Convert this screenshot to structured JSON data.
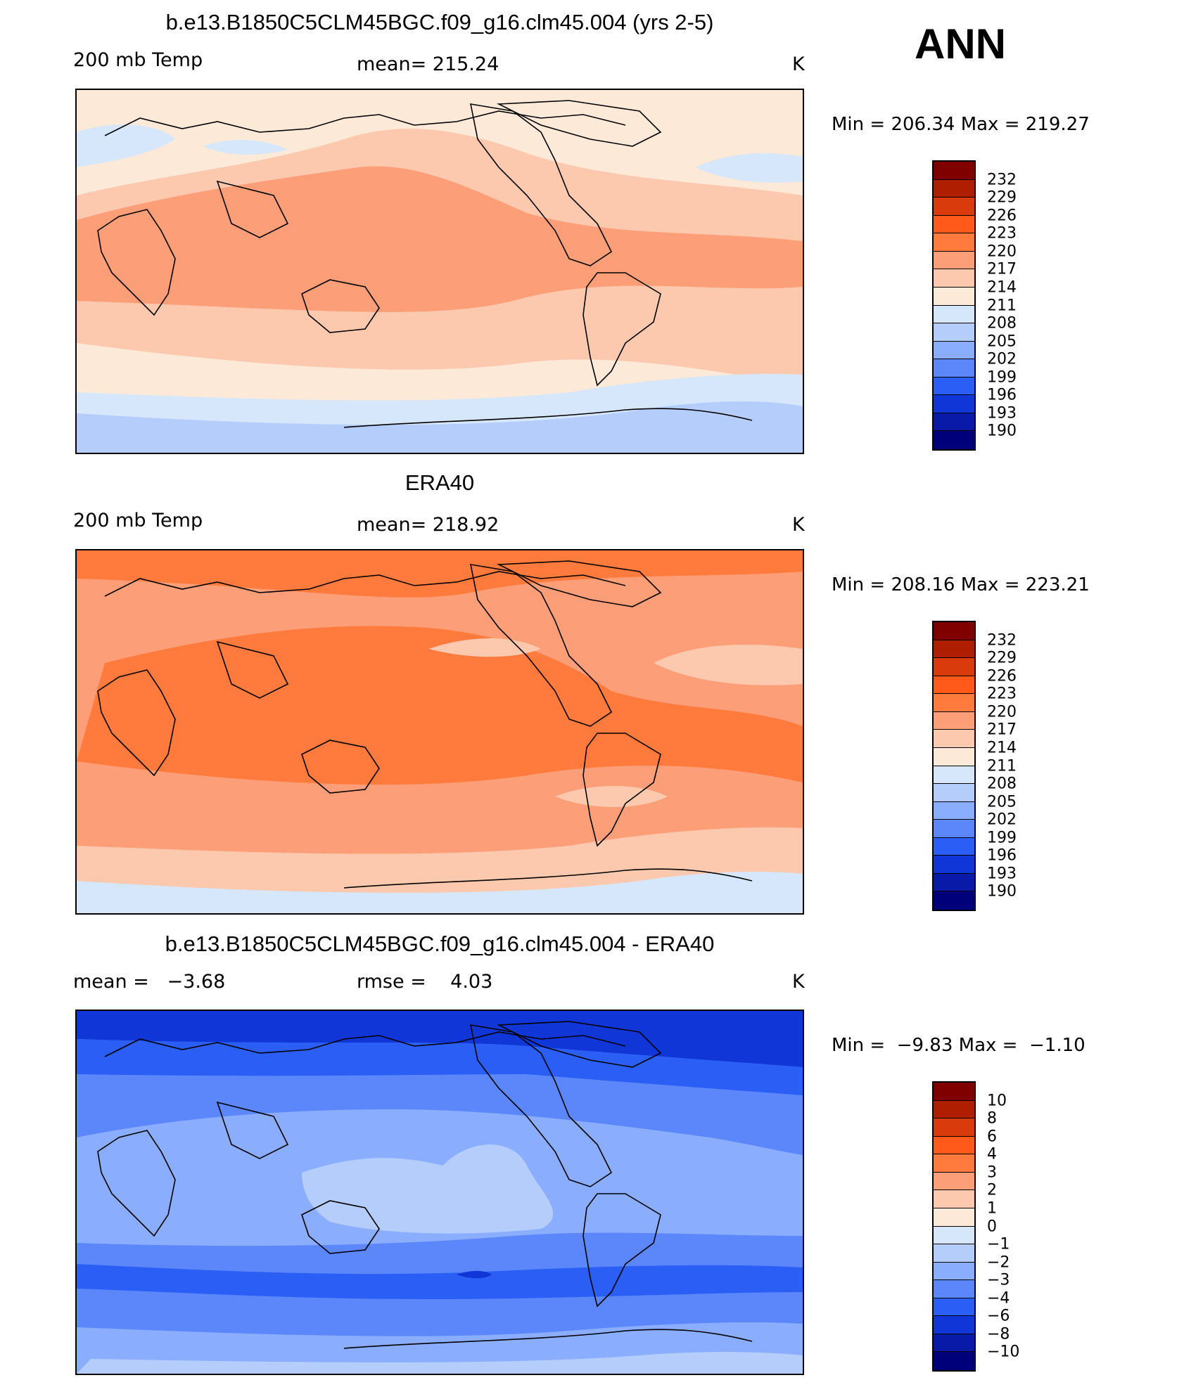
{
  "season": "ANN",
  "panels": [
    {
      "title": "b.e13.B1850C5CLM45BGC.f09_g16.clm45.004 (yrs 2-5)",
      "left_label": "200 mb Temp",
      "center_label": "mean= 215.24",
      "units": "K",
      "minmax": "Min = 206.34 Max = 219.27",
      "field_summary": {
        "min": 206.34,
        "max": 219.27,
        "mean": 215.24
      }
    },
    {
      "title": "ERA40",
      "left_label": "200 mb Temp",
      "center_label": "mean= 218.92",
      "units": "K",
      "minmax": "Min = 208.16 Max = 223.21",
      "field_summary": {
        "min": 208.16,
        "max": 223.21,
        "mean": 218.92
      }
    },
    {
      "title": "b.e13.B1850C5CLM45BGC.f09_g16.clm45.004 - ERA40",
      "left_label": "mean =   −3.68",
      "center_label": "rmse =    4.03",
      "units": "K",
      "minmax": "Min =  −9.83 Max =  −1.10",
      "field_summary": {
        "min": -9.83,
        "max": -1.1,
        "mean": -3.68,
        "rmse": 4.03
      }
    }
  ],
  "colorbars": {
    "absolute": {
      "labels": [
        "232",
        "229",
        "226",
        "223",
        "220",
        "217",
        "214",
        "211",
        "208",
        "205",
        "202",
        "199",
        "196",
        "193",
        "190"
      ],
      "colors": [
        "#800000",
        "#b01e00",
        "#d93b0c",
        "#ff5a19",
        "#ff7a3d",
        "#fc9e78",
        "#fdc9ae",
        "#fde9d8",
        "#d6e7fb",
        "#b4cdfb",
        "#8aadfd",
        "#5b87fb",
        "#2a5ef5",
        "#1036d8",
        "#0a1aa8",
        "#00007a"
      ]
    },
    "difference": {
      "labels": [
        "10",
        "8",
        "6",
        "4",
        "3",
        "2",
        "1",
        "0",
        "−1",
        "−2",
        "−3",
        "−4",
        "−6",
        "−8",
        "−10"
      ],
      "colors": [
        "#800000",
        "#b01e00",
        "#d93b0c",
        "#ff5a19",
        "#ff7a3d",
        "#fc9e78",
        "#fdc9ae",
        "#fde9d8",
        "#d6e7fb",
        "#b4cdfb",
        "#8aadfd",
        "#5b87fb",
        "#2a5ef5",
        "#1036d8",
        "#0a1aa8",
        "#00007a"
      ]
    }
  },
  "map_colors": {
    "land_outline": "#000000",
    "panel1": {
      "bg": "#fde9d8",
      "band": "#fc9e78",
      "mid": "#fdc9ae",
      "cold": "#d6e7fb",
      "polar": "#b4cdfb"
    },
    "panel2": {
      "bg": "#fc9e78",
      "band": "#ff7a3d",
      "mid": "#fdc9ae",
      "cold": "#d6e7fb"
    },
    "panel3": {
      "bg": "#5b87fb",
      "light": "#8aadfd",
      "lighter": "#b4cdfb",
      "dark": "#2a5ef5",
      "darker": "#1036d8"
    }
  }
}
